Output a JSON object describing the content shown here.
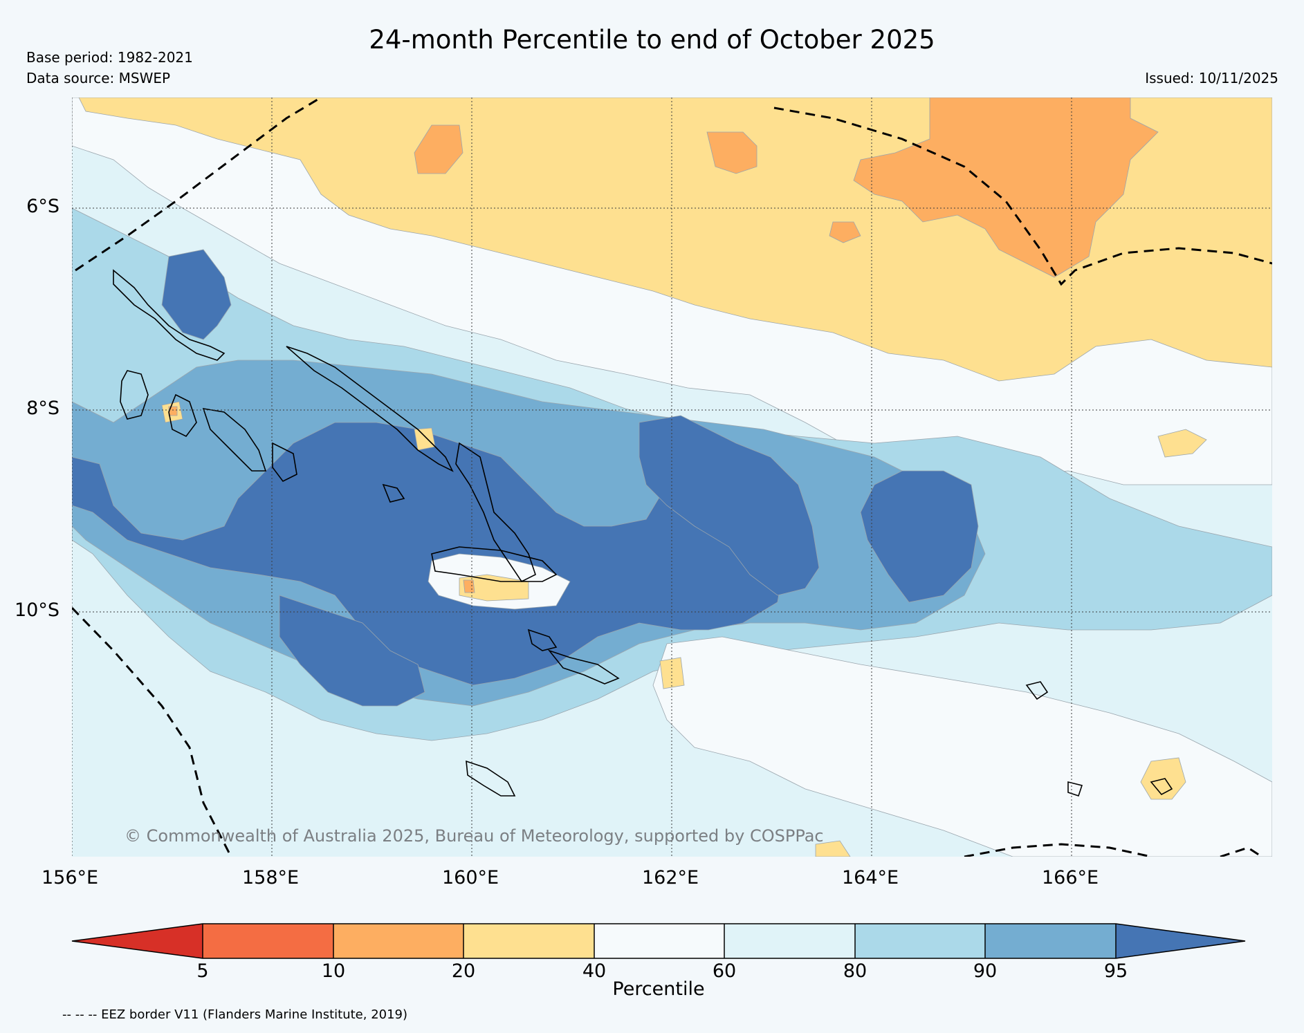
{
  "header": {
    "title": "24-month Percentile to end of October 2025",
    "base_period": "Base period: 1982-2021",
    "data_source": "Data source: MSWEP",
    "issued": "Issued: 10/11/2025"
  },
  "map": {
    "lon_labels": [
      "156°E",
      "158°E",
      "160°E",
      "162°E",
      "164°E",
      "166°E"
    ],
    "lat_labels": [
      "6°S",
      "8°S",
      "10°S"
    ],
    "copyright": "© Commonwealth of Australia 2025, Bureau of Meteorology, supported by COSPPac"
  },
  "colorbar": {
    "label": "Percentile",
    "ticks": [
      "5",
      "10",
      "20",
      "40",
      "60",
      "80",
      "90",
      "95"
    ],
    "colors": [
      "#d73027",
      "#f46d43",
      "#fdae61",
      "#fee090",
      "#f6fafc",
      "#e0f3f8",
      "#abd9e9",
      "#74add1",
      "#4575b4"
    ]
  },
  "footnote": "-- -- -- EEZ border V11 (Flanders Marine Institute, 2019)"
}
